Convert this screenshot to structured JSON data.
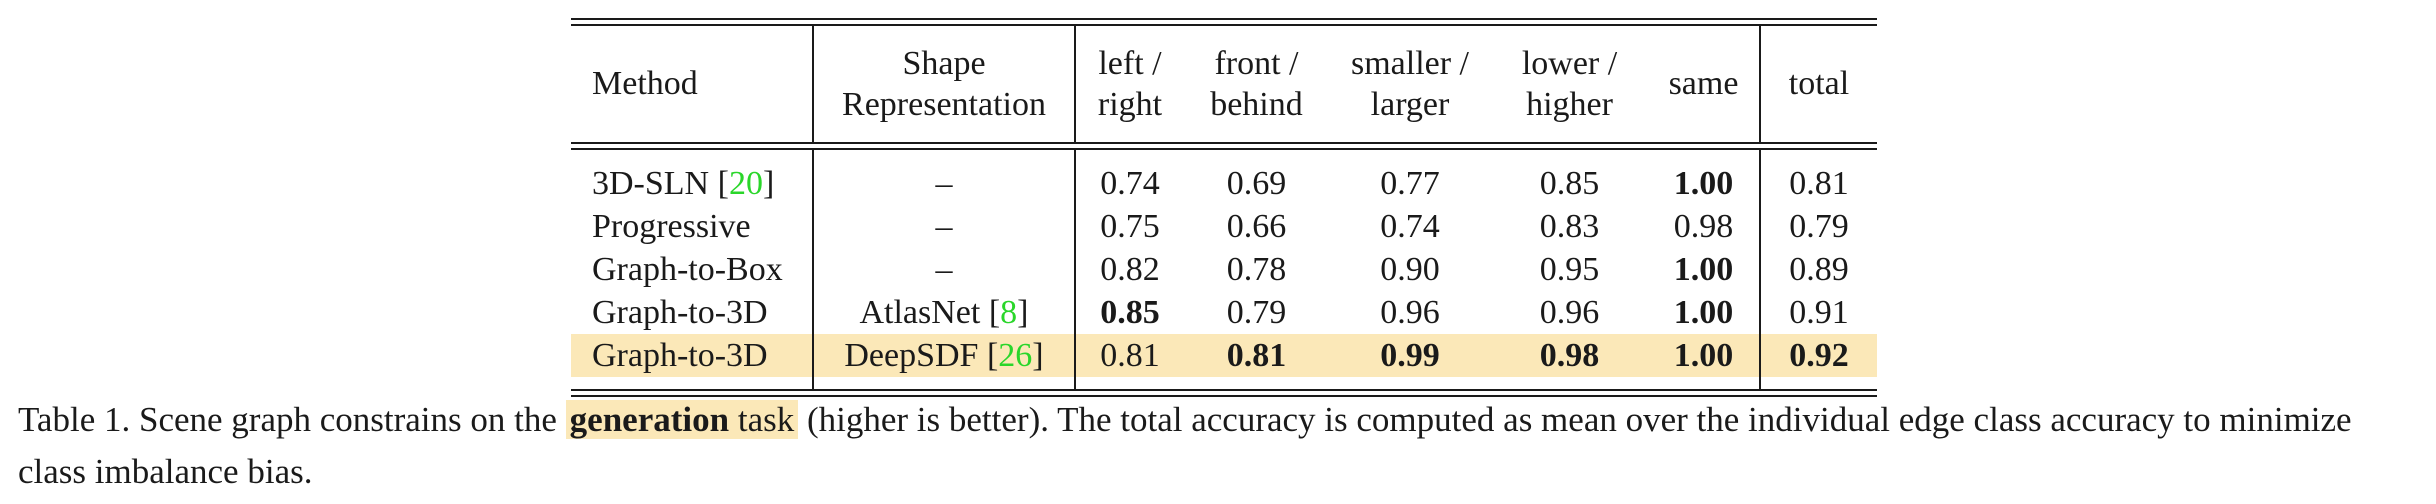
{
  "table": {
    "headers": {
      "method": "Method",
      "shape_line1": "Shape",
      "shape_line2": "Representation",
      "left_line1": "left /",
      "left_line2": "right",
      "front_line1": "front /",
      "front_line2": "behind",
      "smaller_line1": "smaller /",
      "smaller_line2": "larger",
      "lower_line1": "lower /",
      "lower_line2": "higher",
      "same": "same",
      "total": "total"
    },
    "rows": [
      {
        "method": "3D-SLN",
        "ref": "20",
        "shape": "–",
        "shape_ref": "",
        "left_right": "0.74",
        "front_behind": "0.69",
        "smaller_larger": "0.77",
        "lower_higher": "0.85",
        "same": "1.00",
        "total": "0.81"
      },
      {
        "method": "Progressive",
        "ref": "",
        "shape": "–",
        "shape_ref": "",
        "left_right": "0.75",
        "front_behind": "0.66",
        "smaller_larger": "0.74",
        "lower_higher": "0.83",
        "same": "0.98",
        "total": "0.79"
      },
      {
        "method": "Graph-to-Box",
        "ref": "",
        "shape": "–",
        "shape_ref": "",
        "left_right": "0.82",
        "front_behind": "0.78",
        "smaller_larger": "0.90",
        "lower_higher": "0.95",
        "same": "1.00",
        "total": "0.89"
      },
      {
        "method": "Graph-to-3D",
        "ref": "",
        "shape": "AtlasNet",
        "shape_ref": "8",
        "left_right": "0.85",
        "front_behind": "0.79",
        "smaller_larger": "0.96",
        "lower_higher": "0.96",
        "same": "1.00",
        "total": "0.91"
      },
      {
        "method": "Graph-to-3D",
        "ref": "",
        "shape": "DeepSDF",
        "shape_ref": "26",
        "left_right": "0.81",
        "front_behind": "0.81",
        "smaller_larger": "0.99",
        "lower_higher": "0.98",
        "same": "1.00",
        "total": "0.92"
      }
    ]
  },
  "caption": {
    "prefix": "Table 1. Scene graph constrains on the ",
    "highlight_bold": "generation",
    "highlight_rest": " task",
    "suffix": " (higher is better). The total accuracy is computed as mean over the individual edge class accuracy to minimize class imbalance bias."
  },
  "colors": {
    "highlight": "#fbe8b8",
    "citation": "#2ad62a",
    "text": "#1a1a1a"
  }
}
